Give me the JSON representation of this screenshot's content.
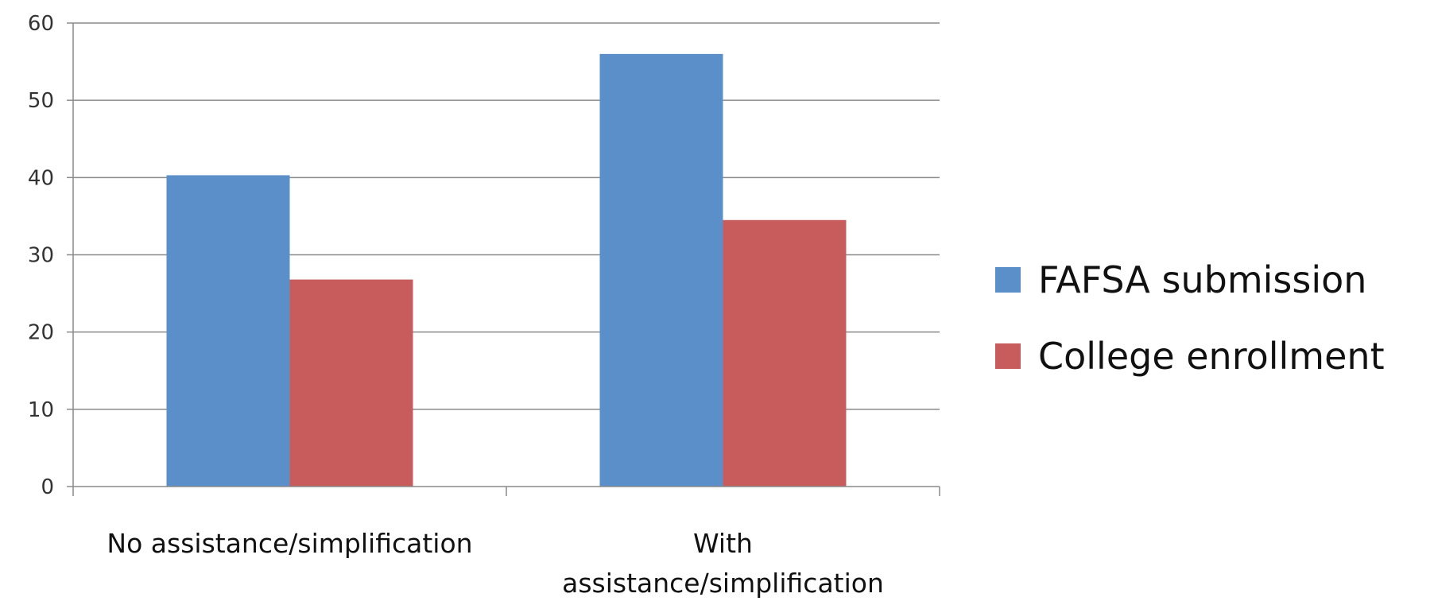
{
  "chart_data": {
    "type": "bar",
    "categories": [
      [
        "No assistance/simplification"
      ],
      [
        "With",
        "assistance/simplification"
      ]
    ],
    "series": [
      {
        "name": "FAFSA submission",
        "values": [
          40.3,
          56.0
        ],
        "color": "#5b8fc9"
      },
      {
        "name": "College enrollment",
        "values": [
          26.8,
          34.5
        ],
        "color": "#c85c5c"
      }
    ],
    "ylim": [
      0,
      60
    ],
    "yticks": [
      0,
      10,
      20,
      30,
      40,
      50,
      60
    ],
    "grid": true,
    "legend_position": "right"
  }
}
